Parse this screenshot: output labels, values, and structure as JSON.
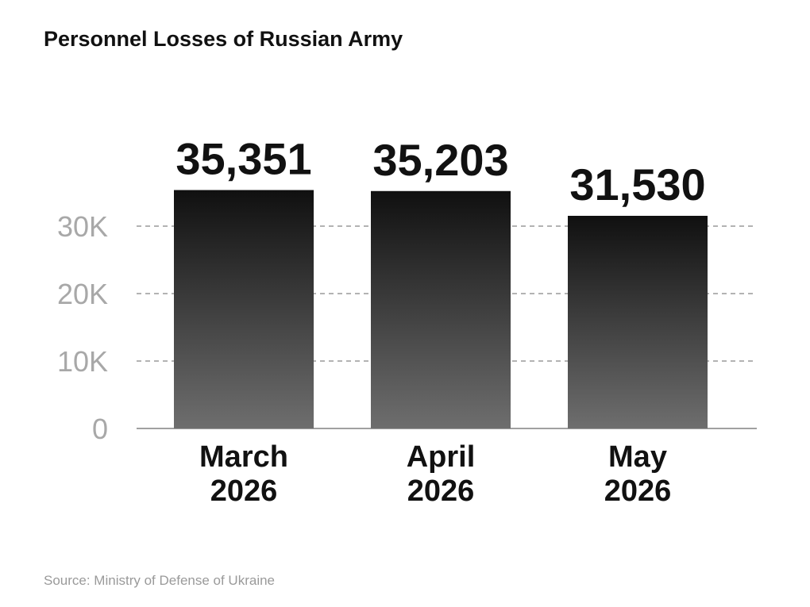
{
  "chart_data": {
    "type": "bar",
    "title": "Personnel Losses of Russian Army",
    "categories": [
      [
        "March",
        "2026"
      ],
      [
        "April",
        "2026"
      ],
      [
        "May",
        "2026"
      ]
    ],
    "values": [
      35351,
      35203,
      31530
    ],
    "value_labels": [
      "35,351",
      "35,203",
      "31,530"
    ],
    "y_ticks": [
      0,
      10000,
      20000,
      30000
    ],
    "y_tick_labels": [
      "0",
      "10K",
      "20K",
      "30K"
    ],
    "ylim": [
      0,
      30000
    ],
    "grid": "dashed horizontal",
    "xlabel": "",
    "ylabel": "",
    "colors": {
      "bar_top": "#101010",
      "bar_bottom": "#6e6e6e",
      "grid": "#9a9a9a",
      "axis": "#a0a0a0"
    }
  },
  "source": "Source: Ministry of Defense of Ukraine"
}
